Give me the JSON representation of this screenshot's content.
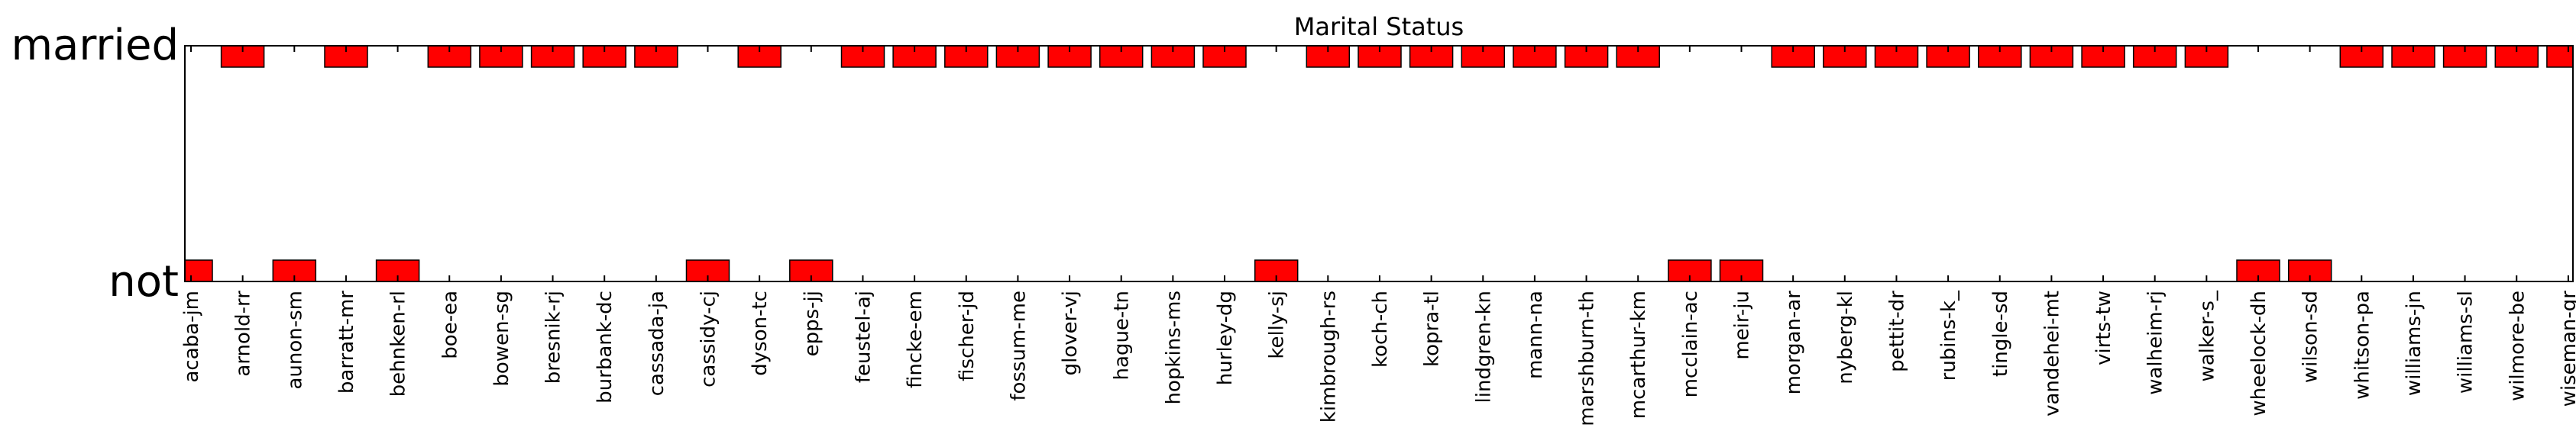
{
  "chart_data": {
    "type": "bar",
    "title": "Marital Status",
    "xlabel": "",
    "ylabel": "",
    "y_ticks": [
      "not",
      "married"
    ],
    "grid": false,
    "bar_color": "#ff0000",
    "categories": [
      "acaba-jm",
      "arnold-rr",
      "aunon-sm",
      "barratt-mr",
      "behnken-rl",
      "boe-ea",
      "bowen-sg",
      "bresnik-rj",
      "burbank-dc",
      "cassada-ja",
      "cassidy-cj",
      "dyson-tc",
      "epps-jj",
      "feustel-aj",
      "fincke-em",
      "fischer-jd",
      "fossum-me",
      "glover-vj",
      "hague-tn",
      "hopkins-ms",
      "hurley-dg",
      "kelly-sj",
      "kimbrough-rs",
      "koch-ch",
      "kopra-tl",
      "lindgren-kn",
      "mann-na",
      "marshburn-th",
      "mcarthur-km",
      "mcclain-ac",
      "meir-ju",
      "morgan-ar",
      "nyberg-kl",
      "pettit-dr",
      "rubins-k_",
      "tingle-sd",
      "vandehei-mt",
      "virts-tw",
      "walheim-rj",
      "walker-s_",
      "wheelock-dh",
      "wilson-sd",
      "whitson-pa",
      "williams-jn",
      "williams-sl",
      "wilmore-be",
      "wiseman-gr"
    ],
    "values": [
      "not",
      "married",
      "not",
      "married",
      "not",
      "married",
      "married",
      "married",
      "married",
      "married",
      "not",
      "married",
      "not",
      "married",
      "married",
      "married",
      "married",
      "married",
      "married",
      "married",
      "married",
      "not",
      "married",
      "married",
      "married",
      "married",
      "married",
      "married",
      "married",
      "not",
      "not",
      "married",
      "married",
      "married",
      "married",
      "married",
      "married",
      "married",
      "married",
      "married",
      "not",
      "not",
      "married",
      "married",
      "married",
      "married",
      "married"
    ]
  }
}
